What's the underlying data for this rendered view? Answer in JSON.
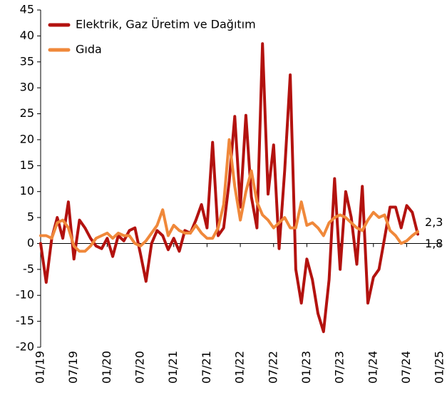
{
  "chart_data": {
    "type": "line",
    "categories": [
      "01/19",
      null,
      null,
      null,
      null,
      null,
      "07/19",
      null,
      null,
      null,
      null,
      null,
      "01/20",
      null,
      null,
      null,
      null,
      null,
      "07/20",
      null,
      null,
      null,
      null,
      null,
      "01/21",
      null,
      null,
      null,
      null,
      null,
      "07/21",
      null,
      null,
      null,
      null,
      null,
      "01/22",
      null,
      null,
      null,
      null,
      null,
      "07/22",
      null,
      null,
      null,
      null,
      null,
      "01/23",
      null,
      null,
      null,
      null,
      null,
      "07/23",
      null,
      null,
      null,
      null,
      null,
      "01/24",
      null,
      null,
      null,
      null,
      null,
      "07/24",
      null,
      null,
      null,
      null,
      null,
      "01/25"
    ],
    "series": [
      {
        "name": "Elektrik, Gaz Üretim ve Dağıtım",
        "color": "#b3120f",
        "values": [
          0,
          -7.5,
          1,
          5,
          1,
          8,
          -3,
          4.5,
          3,
          1,
          -0.5,
          -1,
          1,
          -2.5,
          1.5,
          0.5,
          2.5,
          3,
          -2,
          -7.3,
          0,
          2.5,
          1.5,
          -1.2,
          1,
          -1.5,
          2.5,
          2,
          4.5,
          7.5,
          3,
          19.5,
          1.5,
          3,
          12,
          24.5,
          7,
          24.7,
          9,
          3,
          38.5,
          9.5,
          19,
          -1,
          14,
          32.5,
          -5,
          -11.5,
          -3,
          -7,
          -13.5,
          -17,
          -7,
          12.5,
          -5,
          10,
          5,
          -4,
          11,
          -11.5,
          -6.5,
          -5,
          1,
          7,
          7,
          3,
          7.3,
          6,
          1.8,
          null,
          null,
          null,
          null
        ],
        "value_labels": [
          null,
          null,
          null,
          null,
          null,
          null,
          null,
          null,
          null,
          null,
          null,
          null,
          null,
          null,
          null,
          null,
          null,
          null,
          null,
          null,
          null,
          null,
          null,
          null,
          null,
          null,
          null,
          null,
          null,
          null,
          null,
          null,
          null,
          null,
          null,
          null,
          null,
          null,
          null,
          null,
          null,
          null,
          null,
          null,
          null,
          null,
          null,
          null,
          null,
          null,
          null,
          null,
          null,
          null,
          null,
          null,
          null,
          null,
          null,
          null,
          null,
          null,
          null,
          null,
          null,
          null,
          null,
          null,
          "1,8",
          null,
          null,
          null,
          null
        ]
      },
      {
        "name": "Gıda",
        "color": "#f0883a",
        "values": [
          1.5,
          1.5,
          1,
          4,
          4.5,
          3,
          -0.5,
          -1.5,
          -1.5,
          -0.5,
          1,
          1.5,
          2,
          1,
          2,
          1.5,
          1.5,
          0,
          -0.5,
          0.5,
          2,
          3.5,
          6.5,
          1.5,
          3.5,
          2.5,
          2,
          2,
          3.5,
          2,
          1,
          1,
          3,
          7.5,
          20,
          11,
          4.5,
          10,
          14,
          8,
          5.5,
          4.5,
          3,
          4,
          5,
          3,
          3,
          8,
          3.5,
          4,
          3,
          1.5,
          4,
          5,
          5.5,
          5,
          4,
          3,
          2.5,
          4.5,
          6,
          5,
          5.5,
          2.5,
          1.5,
          0,
          0.5,
          1.5,
          2.3,
          null,
          null,
          null,
          null
        ],
        "value_labels": [
          null,
          null,
          null,
          null,
          null,
          null,
          null,
          null,
          null,
          null,
          null,
          null,
          null,
          null,
          null,
          null,
          null,
          null,
          null,
          null,
          null,
          null,
          null,
          null,
          null,
          null,
          null,
          null,
          null,
          null,
          null,
          null,
          null,
          null,
          null,
          null,
          null,
          null,
          null,
          null,
          null,
          null,
          null,
          null,
          null,
          null,
          null,
          null,
          null,
          null,
          null,
          null,
          null,
          null,
          null,
          null,
          null,
          null,
          null,
          null,
          null,
          null,
          null,
          null,
          null,
          null,
          null,
          null,
          "2,3",
          null,
          null,
          null,
          null
        ]
      }
    ],
    "ylim": [
      -20,
      45
    ],
    "yticks": [
      -20,
      -15,
      -10,
      -5,
      0,
      5,
      10,
      15,
      20,
      25,
      30,
      35,
      40,
      45
    ],
    "legend": "upper left"
  }
}
